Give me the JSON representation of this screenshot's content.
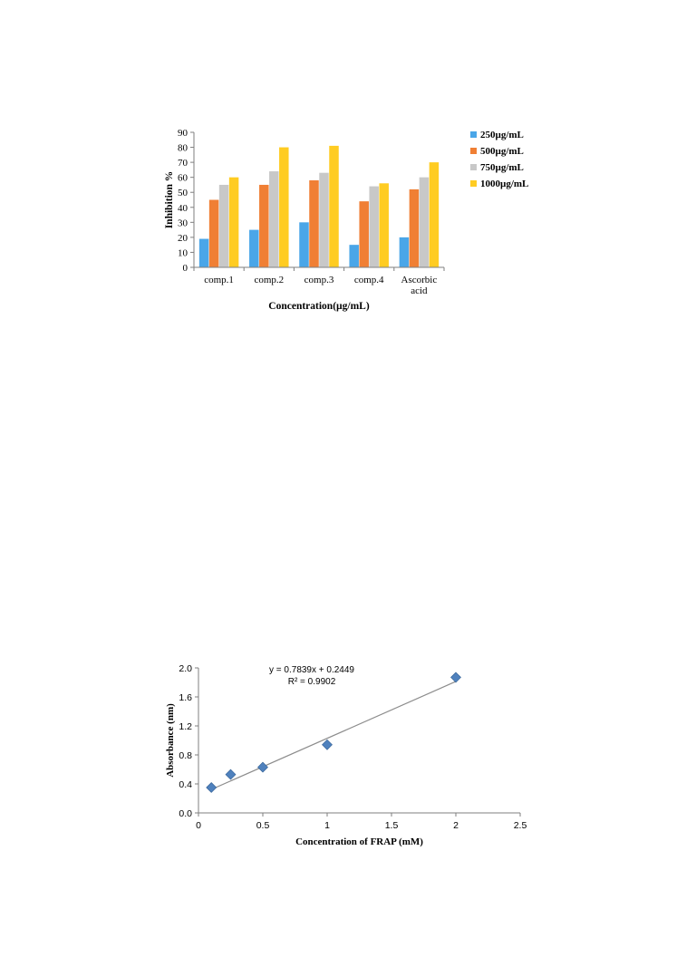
{
  "chart_data": [
    {
      "type": "bar",
      "categories": [
        "comp.1",
        "comp.2",
        "comp.3",
        "comp.4",
        "Ascorbic acid"
      ],
      "series": [
        {
          "name": "250µg/mL",
          "color": "#4aa6e8",
          "values": [
            19,
            25,
            30,
            15,
            20
          ]
        },
        {
          "name": "500µg/mL",
          "color": "#f07f34",
          "values": [
            45,
            55,
            58,
            44,
            52
          ]
        },
        {
          "name": "750µg/mL",
          "color": "#c8c8c8",
          "values": [
            55,
            64,
            63,
            54,
            60
          ]
        },
        {
          "name": "1000µg/mL",
          "color": "#ffcc22",
          "values": [
            60,
            80,
            81,
            56,
            70
          ]
        }
      ],
      "title": "",
      "xlabel": "Concentration(µg/mL)",
      "ylabel": "Inhibition %",
      "ylim": [
        0,
        90
      ],
      "yticks": [
        0,
        10,
        20,
        30,
        40,
        50,
        60,
        70,
        80,
        90
      ],
      "legend": "right",
      "grid": false
    },
    {
      "type": "scatter",
      "points": [
        {
          "x": 0.1,
          "y": 0.35
        },
        {
          "x": 0.25,
          "y": 0.53
        },
        {
          "x": 0.5,
          "y": 0.63
        },
        {
          "x": 1.0,
          "y": 0.94
        },
        {
          "x": 2.0,
          "y": 1.87
        }
      ],
      "trendline": {
        "slope": 0.7839,
        "intercept": 0.2449,
        "x_range": [
          0.1,
          2.0
        ]
      },
      "annotations": [
        "y = 0.7839x + 0.2449",
        "R² = 0.9902"
      ],
      "marker_color": "#4f81bd",
      "title": "",
      "xlabel": "Concentration of FRAP (mM)",
      "ylabel": "Absorbance (nm)",
      "xlim": [
        0,
        2.5
      ],
      "ylim": [
        0,
        2.0
      ],
      "xticks": [
        "0",
        "0.5",
        "1",
        "1.5",
        "2",
        "2.5"
      ],
      "yticks": [
        "0.0",
        "0.4",
        "0.8",
        "1.2",
        "1.6",
        "2.0"
      ],
      "grid": false
    }
  ]
}
